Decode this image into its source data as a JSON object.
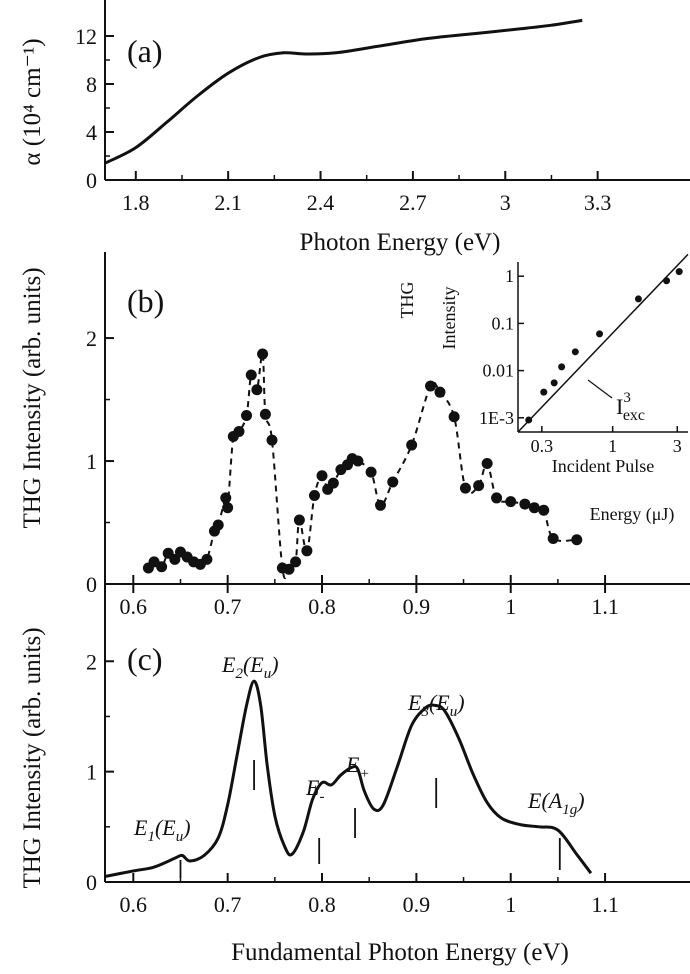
{
  "chart_data": [
    {
      "id": "a",
      "type": "line",
      "panel_label": "(a)",
      "xlabel": "Photon Energy (eV)",
      "ylabel": "α (10⁴ cm⁻¹)",
      "xlim": [
        1.7,
        3.6
      ],
      "ylim": [
        0,
        15
      ],
      "xticks": [
        1.8,
        2.1,
        2.4,
        2.7,
        3.0,
        3.3
      ],
      "yticks": [
        0,
        4,
        8,
        12
      ],
      "series": [
        {
          "x": [
            1.7,
            1.8,
            1.9,
            2.0,
            2.1,
            2.2,
            2.28,
            2.35,
            2.45,
            2.6,
            2.75,
            2.9,
            3.05,
            3.15,
            3.25
          ],
          "y": [
            1.4,
            2.7,
            4.8,
            7.0,
            8.9,
            10.2,
            10.6,
            10.5,
            10.6,
            11.2,
            11.8,
            12.2,
            12.6,
            12.9,
            13.3
          ]
        }
      ]
    },
    {
      "id": "b",
      "type": "scatter",
      "panel_label": "(b)",
      "xlabel": "",
      "ylabel": "THG Intensity (arb. units)",
      "xlim": [
        0.57,
        1.19
      ],
      "ylim": [
        0,
        2.7
      ],
      "xticks": [
        0.6,
        0.7,
        0.8,
        0.9,
        1.0,
        1.1
      ],
      "yticks": [
        0,
        1,
        2
      ],
      "series": [
        {
          "x": [
            0.616,
            0.622,
            0.63,
            0.637,
            0.644,
            0.65,
            0.657,
            0.664,
            0.671,
            0.678,
            0.686,
            0.69,
            0.698,
            0.7,
            0.706,
            0.712,
            0.72,
            0.725,
            0.731,
            0.737,
            0.74,
            0.747,
            0.758,
            0.765,
            0.772,
            0.776,
            0.784,
            0.792,
            0.8,
            0.806,
            0.812,
            0.82,
            0.827,
            0.832,
            0.838,
            0.852,
            0.862,
            0.875,
            0.895,
            0.915,
            0.925,
            0.94,
            0.952,
            0.966,
            0.975,
            0.985,
            1.0,
            1.015,
            1.025,
            1.035,
            1.045,
            1.07
          ],
          "y": [
            0.13,
            0.18,
            0.14,
            0.25,
            0.2,
            0.26,
            0.22,
            0.18,
            0.16,
            0.2,
            0.43,
            0.48,
            0.7,
            0.62,
            1.2,
            1.24,
            1.37,
            1.7,
            1.58,
            1.87,
            1.38,
            1.17,
            0.13,
            0.12,
            0.18,
            0.52,
            0.27,
            0.72,
            0.88,
            0.77,
            0.82,
            0.93,
            0.97,
            1.02,
            1.0,
            0.91,
            0.64,
            0.83,
            1.13,
            1.61,
            1.56,
            1.36,
            0.78,
            0.8,
            0.98,
            0.7,
            0.67,
            0.65,
            0.62,
            0.6,
            0.37,
            0.36
          ]
        }
      ],
      "inset": {
        "type": "scatter",
        "scale": "log-log",
        "ylabel_top": "THG",
        "ylabel_bottom": "Intensity",
        "xlabel_line1": "Incident Pulse",
        "xlabel_line2": "Energy (μJ)",
        "annotation": "I³",
        "annotation_sub": "exc",
        "xlim": [
          0.2,
          3.6
        ],
        "ylim": [
          0.0005,
          2
        ],
        "xticks": [
          0.3,
          1,
          3
        ],
        "xtick_labels": [
          "0.3",
          "1",
          "3"
        ],
        "yticks": [
          0.001,
          0.01,
          0.1,
          1
        ],
        "ytick_labels": [
          "1E-3",
          "0.01",
          "0.1",
          "1"
        ],
        "x": [
          0.24,
          0.31,
          0.37,
          0.42,
          0.53,
          0.8,
          1.55,
          2.5,
          3.1
        ],
        "y": [
          0.0009,
          0.0035,
          0.0055,
          0.012,
          0.025,
          0.06,
          0.33,
          0.8,
          1.25
        ],
        "fit_x": [
          0.2,
          3.6
        ],
        "fit_y": [
          0.0005,
          2.9
        ]
      }
    },
    {
      "id": "c",
      "type": "line",
      "panel_label": "(c)",
      "xlabel": "Fundamental Photon Energy (eV)",
      "ylabel": "THG Intensity (arb. units)",
      "xlim": [
        0.57,
        1.19
      ],
      "ylim": [
        0,
        2.7
      ],
      "xticks": [
        0.6,
        0.7,
        0.8,
        0.9,
        1.0,
        1.1
      ],
      "yticks": [
        0,
        1,
        2
      ],
      "series": [
        {
          "x": [
            0.57,
            0.6,
            0.62,
            0.635,
            0.645,
            0.652,
            0.66,
            0.675,
            0.69,
            0.7,
            0.71,
            0.72,
            0.728,
            0.735,
            0.742,
            0.75,
            0.76,
            0.768,
            0.78,
            0.79,
            0.8,
            0.81,
            0.82,
            0.832,
            0.838,
            0.845,
            0.855,
            0.865,
            0.88,
            0.895,
            0.91,
            0.92,
            0.93,
            0.945,
            0.96,
            0.975,
            0.99,
            1.01,
            1.03,
            1.05,
            1.07,
            1.085
          ],
          "y": [
            0.05,
            0.1,
            0.13,
            0.18,
            0.22,
            0.24,
            0.19,
            0.24,
            0.4,
            0.7,
            1.15,
            1.6,
            1.82,
            1.6,
            1.05,
            0.6,
            0.33,
            0.25,
            0.45,
            0.75,
            0.9,
            0.88,
            0.97,
            1.04,
            1.02,
            0.82,
            0.66,
            0.7,
            1.05,
            1.42,
            1.58,
            1.6,
            1.55,
            1.3,
            0.98,
            0.72,
            0.58,
            0.52,
            0.5,
            0.47,
            0.25,
            0.08
          ]
        }
      ],
      "annotations": [
        {
          "label": "E",
          "sub": "1",
          "paren": "(E",
          "psub": "u",
          "close": ")",
          "x": 0.65
        },
        {
          "label": "E",
          "sub": "2",
          "paren": "(E",
          "psub": "u",
          "close": ")",
          "x": 0.728
        },
        {
          "label": "E",
          "sub": "-",
          "paren": "",
          "psub": "",
          "close": "",
          "x": 0.797
        },
        {
          "label": "E",
          "sub": "+",
          "paren": "",
          "psub": "",
          "close": "",
          "x": 0.835
        },
        {
          "label": "E",
          "sub": "3",
          "paren": "(E",
          "psub": "u",
          "close": ")",
          "x": 0.921
        },
        {
          "label": "E",
          "sub": "",
          "paren": "(A",
          "psub": "1g",
          "close": ")",
          "x": 1.052
        }
      ]
    }
  ]
}
